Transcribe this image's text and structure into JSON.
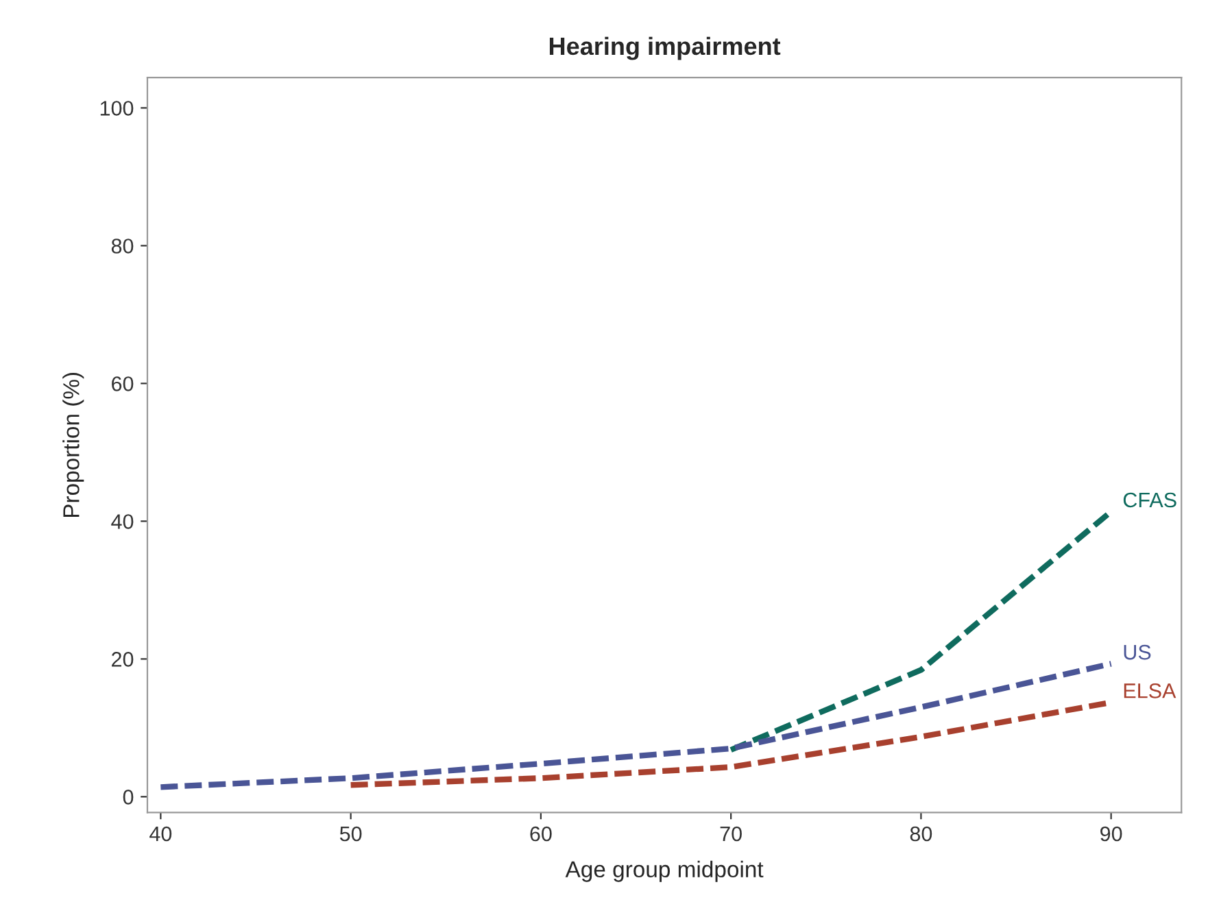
{
  "chart_data": {
    "type": "line",
    "title": "Hearing impairment",
    "xlabel": "Age group midpoint",
    "ylabel": "Proportion (%)",
    "xlim": [
      39.3,
      93.7
    ],
    "xticks": [
      40,
      50,
      60,
      70,
      80,
      90
    ],
    "ylim": [
      -2.3,
      104.4
    ],
    "yticks": [
      0,
      20,
      40,
      60,
      80,
      100
    ],
    "grid": false,
    "legend": false,
    "line_style": "dashed",
    "marker": "none",
    "series": [
      {
        "name": "CFAS",
        "color": "#0f6b5e",
        "x": [
          70,
          80,
          90
        ],
        "values": [
          6.8,
          18.4,
          41.4
        ]
      },
      {
        "name": "US",
        "color": "#4a5596",
        "x": [
          40,
          50,
          60,
          70,
          80,
          90
        ],
        "values": [
          1.4,
          2.7,
          4.8,
          7.0,
          13.0,
          19.3
        ]
      },
      {
        "name": "ELSA",
        "color": "#a8402e",
        "x": [
          50,
          60,
          70,
          80,
          90
        ],
        "values": [
          1.7,
          2.7,
          4.3,
          8.7,
          13.7
        ]
      }
    ]
  }
}
